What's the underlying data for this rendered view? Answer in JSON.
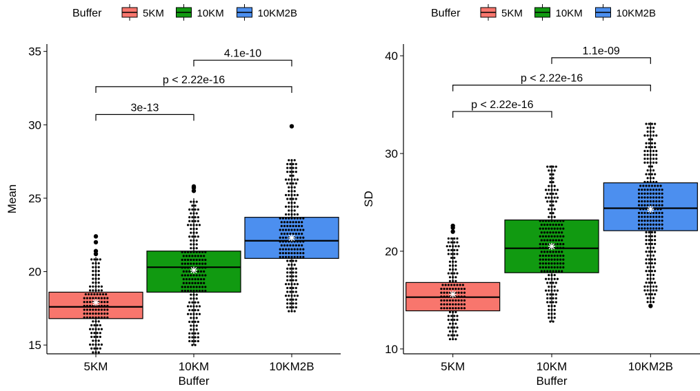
{
  "chart_data": [
    {
      "type": "box",
      "legend": {
        "title": "Buffer",
        "position": "top",
        "entries": [
          {
            "label": "5KM",
            "color": "#F8766D"
          },
          {
            "label": "10KM",
            "color": "#119A11"
          },
          {
            "label": "10KM2B",
            "color": "#4C8FEF"
          }
        ]
      },
      "xlabel": "Buffer",
      "ylabel": "Mean",
      "categories": [
        "5KM",
        "10KM",
        "10KM2B"
      ],
      "ylim": [
        14.4,
        35.5
      ],
      "yticks": [
        15,
        20,
        25,
        30,
        35
      ],
      "boxes": [
        {
          "category": "5KM",
          "q1": 16.8,
          "median": 17.6,
          "q3": 18.6,
          "whisker_low": 14.5,
          "whisker_high": 21.0,
          "mean": 17.9,
          "outliers": [
            21.2,
            21.4,
            22.0,
            22.4
          ],
          "color": "#F8766D"
        },
        {
          "category": "10KM",
          "q1": 18.6,
          "median": 20.3,
          "q3": 21.4,
          "whisker_low": 15.0,
          "whisker_high": 25.0,
          "mean": 20.1,
          "outliers": [
            25.5,
            25.7,
            25.8
          ],
          "color": "#119A11"
        },
        {
          "category": "10KM2B",
          "q1": 20.9,
          "median": 22.1,
          "q3": 23.7,
          "whisker_low": 17.3,
          "whisker_high": 27.6,
          "mean": 22.3,
          "outliers": [
            29.9
          ],
          "color": "#4C8FEF"
        }
      ],
      "comparisons": [
        {
          "from": "10KM",
          "to": "10KM2B",
          "label": "4.1e-10",
          "y": 34.4
        },
        {
          "from": "5KM",
          "to": "10KM2B",
          "label": "p < 2.22e-16",
          "y": 32.6
        },
        {
          "from": "5KM",
          "to": "10KM",
          "label": "3e-13",
          "y": 30.7
        }
      ],
      "grid": false
    },
    {
      "type": "box",
      "legend": {
        "title": "Buffer",
        "position": "top",
        "entries": [
          {
            "label": "5KM",
            "color": "#F8766D"
          },
          {
            "label": "10KM",
            "color": "#119A11"
          },
          {
            "label": "10KM2B",
            "color": "#4C8FEF"
          }
        ]
      },
      "xlabel": "Buffer",
      "ylabel": "SD",
      "categories": [
        "5KM",
        "10KM",
        "10KM2B"
      ],
      "ylim": [
        9.5,
        41.2
      ],
      "yticks": [
        10,
        20,
        30,
        40
      ],
      "boxes": [
        {
          "category": "5KM",
          "q1": 13.9,
          "median": 15.3,
          "q3": 16.8,
          "whisker_low": 11.0,
          "whisker_high": 21.4,
          "mean": 15.6,
          "outliers": [
            22.0,
            22.4,
            22.6
          ],
          "color": "#F8766D"
        },
        {
          "category": "10KM",
          "q1": 17.8,
          "median": 20.3,
          "q3": 23.2,
          "whisker_low": 12.8,
          "whisker_high": 28.8,
          "mean": 20.5,
          "outliers": [],
          "color": "#119A11"
        },
        {
          "category": "10KM2B",
          "q1": 22.1,
          "median": 24.4,
          "q3": 27.0,
          "whisker_low": 14.8,
          "whisker_high": 33.2,
          "mean": 24.3,
          "outliers": [
            14.4
          ],
          "color": "#4C8FEF"
        }
      ],
      "comparisons": [
        {
          "from": "10KM",
          "to": "10KM2B",
          "label": "1.1e-09",
          "y": 39.8
        },
        {
          "from": "5KM",
          "to": "10KM2B",
          "label": "p < 2.22e-16",
          "y": 37.0
        },
        {
          "from": "5KM",
          "to": "10KM",
          "label": "p < 2.22e-16",
          "y": 34.3
        }
      ],
      "grid": false
    }
  ]
}
